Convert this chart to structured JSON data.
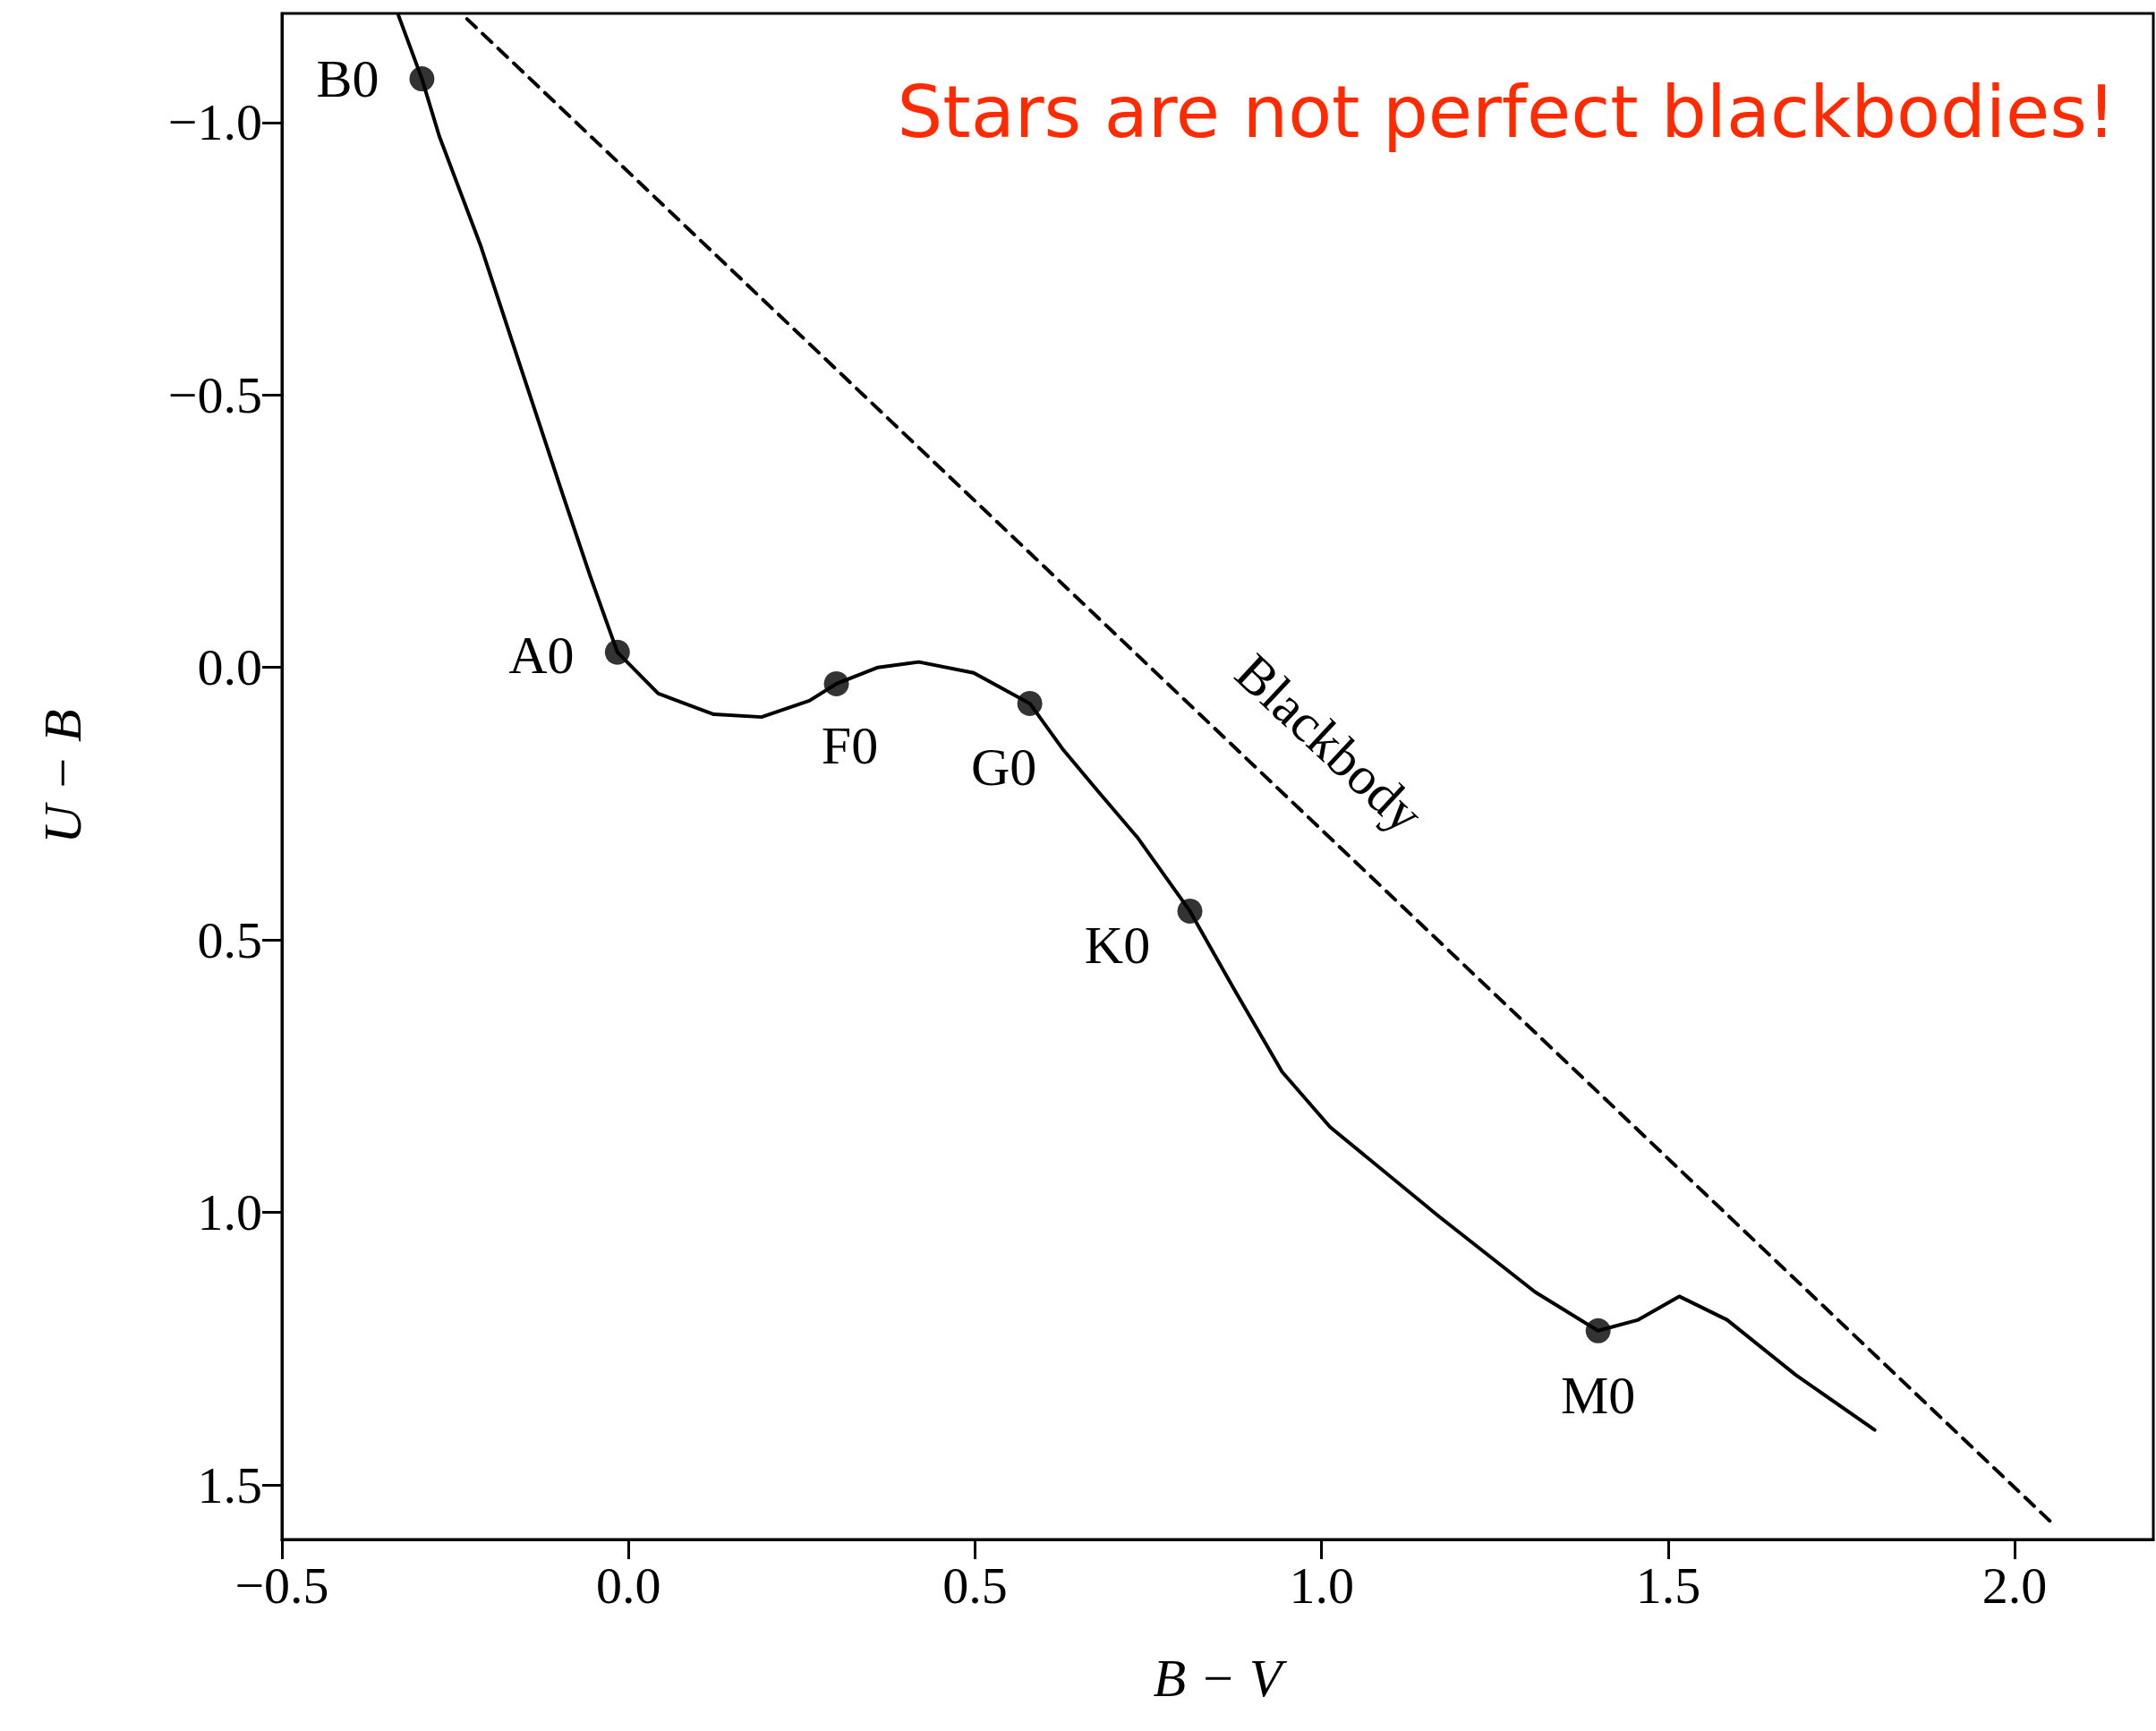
{
  "chart_data": {
    "type": "line",
    "title": "Stars are not perfect blackbodies!",
    "xlabel": "B − V",
    "ylabel": "U − B",
    "xlim": [
      -0.5,
      2.2
    ],
    "ylim": [
      1.6,
      -1.2
    ],
    "xticks": [
      {
        "value": -0.5,
        "label": "−0.5"
      },
      {
        "value": 0,
        "label": "0.0"
      },
      {
        "value": 0.5,
        "label": "0.5"
      },
      {
        "value": 1,
        "label": "1.0"
      },
      {
        "value": 1.5,
        "label": "1.5"
      },
      {
        "value": 2,
        "label": "2.0"
      }
    ],
    "yticks": [
      {
        "value": -1,
        "label": "−1.0"
      },
      {
        "value": -0.5,
        "label": "−0.5"
      },
      {
        "value": 0,
        "label": "0.0"
      },
      {
        "value": 0.5,
        "label": "0.5"
      },
      {
        "value": 1,
        "label": "1.0"
      },
      {
        "value": 1.5,
        "label": "1.5"
      }
    ],
    "series": [
      {
        "color": "#000000",
        "line_style": "solid",
        "marker": "none",
        "x": [
          -0.332,
          -0.298,
          -0.273,
          -0.213,
          -0.154,
          -0.095,
          -0.055,
          -0.016,
          0.043,
          0.123,
          0.192,
          0.261,
          0.3,
          0.36,
          0.419,
          0.498,
          0.579,
          0.626,
          0.676,
          0.735,
          0.81,
          0.874,
          0.943,
          1.012,
          1.17,
          1.308,
          1.399,
          1.457,
          1.516,
          1.585,
          1.684,
          1.798
        ],
        "values": [
          -1.197,
          -1.08,
          -0.975,
          -0.773,
          -0.545,
          -0.318,
          -0.167,
          -0.028,
          0.048,
          0.086,
          0.091,
          0.061,
          0.03,
          0.0,
          -0.01,
          0.01,
          0.066,
          0.149,
          0.225,
          0.313,
          0.447,
          0.591,
          0.742,
          0.843,
          1.008,
          1.146,
          1.217,
          1.197,
          1.154,
          1.197,
          1.298,
          1.399
        ]
      },
      {
        "type": "scatter",
        "color": "#000000",
        "marker": "circle",
        "x": [
          -0.298,
          -0.016,
          0.3,
          0.579,
          0.81,
          1.399
        ],
        "values": [
          -1.08,
          -0.028,
          0.03,
          0.066,
          0.447,
          1.217
        ]
      },
      {
        "type": "line",
        "color": "#000000",
        "line_style": "dashed",
        "marker": "none",
        "x": [
          -0.233,
          2.059
        ],
        "values": [
          -1.19,
          1.576
        ]
      }
    ],
    "annotations": [
      {
        "text": "B0",
        "x": -0.298,
        "y": -1.08
      },
      {
        "text": "A0",
        "x": -0.016,
        "y": -0.028
      },
      {
        "text": "F0",
        "x": 0.3,
        "y": 0.03
      },
      {
        "text": "G0",
        "x": 0.579,
        "y": 0.066
      },
      {
        "text": "K0",
        "x": 0.81,
        "y": 0.447
      },
      {
        "text": "M0",
        "x": 1.399,
        "y": 1.217
      },
      "Blackbody"
    ]
  }
}
